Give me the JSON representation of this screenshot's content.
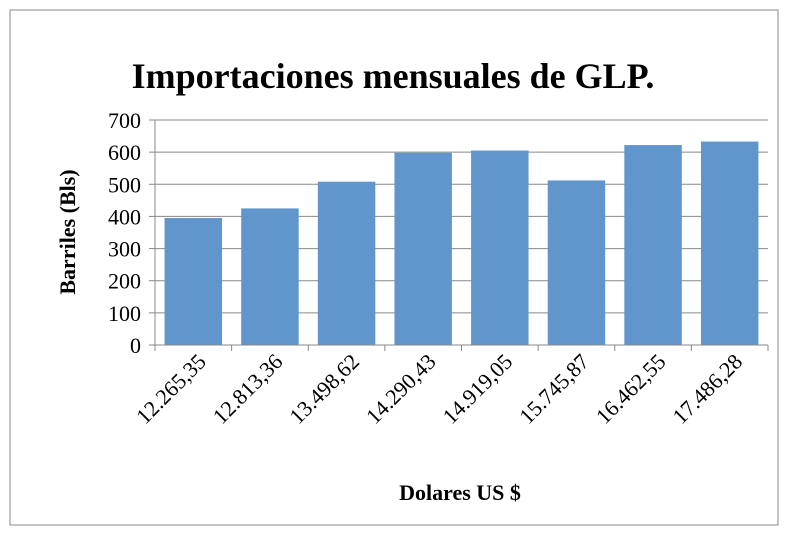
{
  "chart_data": {
    "type": "bar",
    "title": "Importaciones mensuales de GLP.",
    "x_label": "Dolares US $",
    "y_label": "Barriles (Bls)",
    "categories": [
      "12.265,35",
      "12.813,36",
      "13.498,62",
      "14.290,43",
      "14.919,05",
      "15.745,87",
      "16.462,55",
      "17.486,28"
    ],
    "values": [
      395,
      425,
      508,
      598,
      605,
      512,
      622,
      633
    ],
    "color": "#6096cc",
    "ylim": [
      0,
      700
    ],
    "yticks": [
      0,
      100,
      200,
      300,
      400,
      500,
      600,
      700
    ],
    "grid": true
  }
}
